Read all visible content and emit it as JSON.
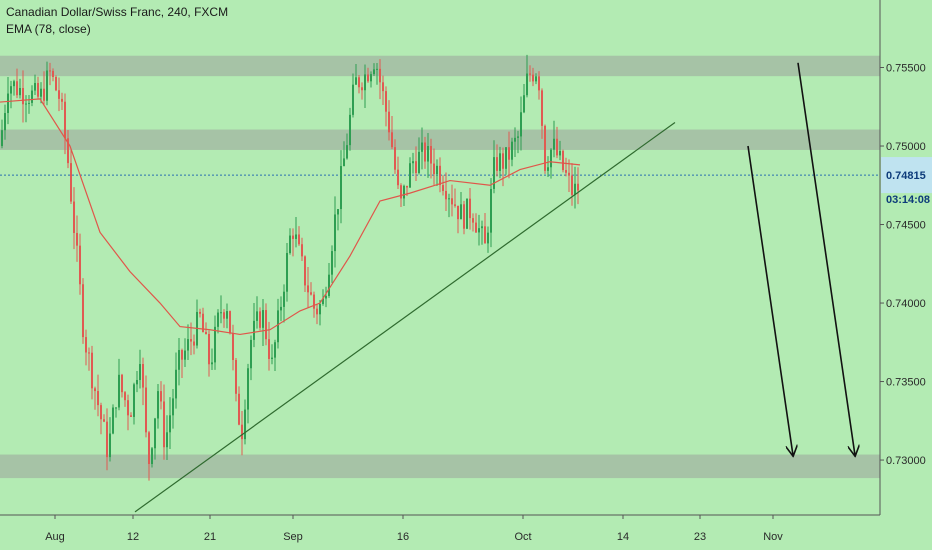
{
  "chart_data": {
    "type": "candlestick",
    "title": "Canadian Dollar/Swiss Franc, 240, FXCM",
    "indicator_label": "EMA (78, close)",
    "x_ticks": [
      "Aug",
      "12",
      "21",
      "Sep",
      "16",
      "Oct",
      "14",
      "23",
      "Nov"
    ],
    "y_ticks": [
      "0.75500",
      "0.75000",
      "0.74500",
      "0.74000",
      "0.73500",
      "0.73000"
    ],
    "ylim": [
      0.7265,
      0.7593
    ],
    "current_price": "0.74815",
    "countdown": "03:14:08",
    "background_color": "#b3ebb3",
    "up_color": "#2e9e52",
    "down_color": "#e05a52",
    "ema_color": "#e0564a",
    "price_path": [
      [
        0,
        0.75
      ],
      [
        8,
        0.7541
      ],
      [
        22,
        0.7535
      ],
      [
        40,
        0.753
      ],
      [
        50,
        0.7546
      ],
      [
        60,
        0.753
      ],
      [
        68,
        0.749
      ],
      [
        76,
        0.7435
      ],
      [
        84,
        0.738
      ],
      [
        95,
        0.7345
      ],
      [
        108,
        0.7305
      ],
      [
        118,
        0.735
      ],
      [
        130,
        0.733
      ],
      [
        140,
        0.737
      ],
      [
        148,
        0.7295
      ],
      [
        158,
        0.7345
      ],
      [
        165,
        0.731
      ],
      [
        178,
        0.736
      ],
      [
        190,
        0.7375
      ],
      [
        200,
        0.739
      ],
      [
        210,
        0.736
      ],
      [
        220,
        0.7395
      ],
      [
        228,
        0.74
      ],
      [
        236,
        0.7335
      ],
      [
        242,
        0.732
      ],
      [
        250,
        0.7375
      ],
      [
        262,
        0.7395
      ],
      [
        272,
        0.736
      ],
      [
        282,
        0.7405
      ],
      [
        292,
        0.745
      ],
      [
        303,
        0.742
      ],
      [
        315,
        0.7395
      ],
      [
        323,
        0.74
      ],
      [
        333,
        0.7445
      ],
      [
        345,
        0.7495
      ],
      [
        355,
        0.754
      ],
      [
        365,
        0.7545
      ],
      [
        375,
        0.7557
      ],
      [
        382,
        0.7535
      ],
      [
        390,
        0.751
      ],
      [
        400,
        0.746
      ],
      [
        412,
        0.749
      ],
      [
        425,
        0.7495
      ],
      [
        438,
        0.7485
      ],
      [
        450,
        0.747
      ],
      [
        462,
        0.7455
      ],
      [
        472,
        0.746
      ],
      [
        485,
        0.7435
      ],
      [
        495,
        0.749
      ],
      [
        505,
        0.749
      ],
      [
        518,
        0.7505
      ],
      [
        528,
        0.7545
      ],
      [
        538,
        0.755
      ],
      [
        545,
        0.749
      ],
      [
        553,
        0.75
      ],
      [
        563,
        0.7485
      ],
      [
        573,
        0.747
      ],
      [
        580,
        0.7475
      ]
    ],
    "ema_path": [
      [
        0,
        0.7528
      ],
      [
        40,
        0.753
      ],
      [
        70,
        0.75
      ],
      [
        100,
        0.7445
      ],
      [
        130,
        0.742
      ],
      [
        160,
        0.74
      ],
      [
        180,
        0.7385
      ],
      [
        210,
        0.7383
      ],
      [
        240,
        0.738
      ],
      [
        270,
        0.7383
      ],
      [
        300,
        0.7395
      ],
      [
        320,
        0.74
      ],
      [
        350,
        0.743
      ],
      [
        380,
        0.7465
      ],
      [
        410,
        0.747
      ],
      [
        450,
        0.7478
      ],
      [
        490,
        0.7475
      ],
      [
        520,
        0.7485
      ],
      [
        550,
        0.749
      ],
      [
        580,
        0.7488
      ]
    ],
    "zones": [
      {
        "y1": 0.75575,
        "y2": 0.75445
      },
      {
        "y1": 0.75105,
        "y2": 0.74975
      },
      {
        "y1": 0.73035,
        "y2": 0.72885
      }
    ],
    "trendline": [
      [
        135,
        0.7267
      ],
      [
        675,
        0.7515
      ]
    ],
    "arrows": [
      [
        [
          748,
          0.75
        ],
        [
          793,
          0.7303
        ]
      ],
      [
        [
          798,
          0.7553
        ],
        [
          855,
          0.7303
        ]
      ]
    ]
  }
}
